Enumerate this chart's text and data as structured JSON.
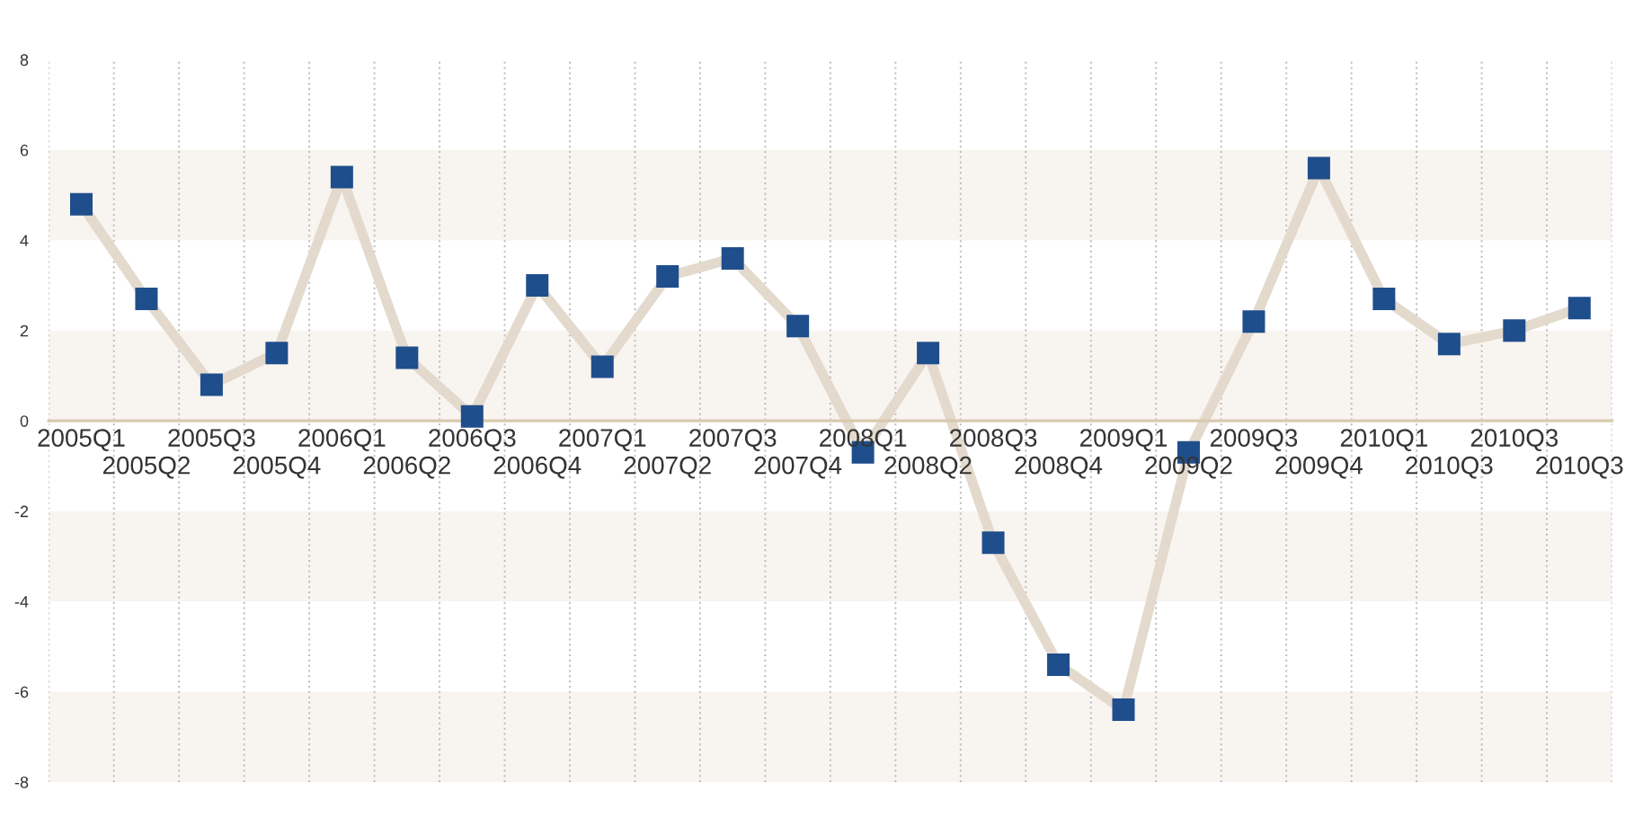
{
  "chart_data": {
    "type": "line",
    "categories": [
      "2005Q1",
      "2005Q2",
      "2005Q3",
      "2005Q4",
      "2006Q1",
      "2006Q2",
      "2006Q3",
      "2006Q4",
      "2007Q1",
      "2007Q2",
      "2007Q3",
      "2007Q4",
      "2008Q1",
      "2008Q2",
      "2008Q3",
      "2008Q4",
      "2009Q1",
      "2009Q2",
      "2009Q3",
      "2009Q4",
      "2010Q1",
      "2010Q3",
      "2010Q3",
      "2010Q3"
    ],
    "series": [
      {
        "color": "#1f4e8c",
        "values": [
          4.8,
          2.7,
          0.8,
          1.5,
          5.4,
          1.4,
          0.1,
          3.0,
          1.2,
          3.2,
          3.6,
          2.1,
          -0.7,
          1.5,
          -2.7,
          -5.4,
          -6.4,
          -0.7,
          2.2,
          5.6,
          2.7,
          1.7,
          2.0,
          2.5
        ]
      }
    ],
    "ylim": [
      -8,
      8
    ],
    "yticks": [
      -8,
      -6,
      -4,
      -2,
      0,
      2,
      4,
      6,
      8
    ],
    "bands": [
      {
        "axis": "y",
        "from": 4,
        "to": 6,
        "color": "#f8f4ef"
      },
      {
        "axis": "y",
        "from": 0,
        "to": 2,
        "color": "#f8f4ef"
      },
      {
        "axis": "y",
        "from": -4,
        "to": -2,
        "color": "#f8f4ef"
      },
      {
        "axis": "y",
        "from": -8,
        "to": -6,
        "color": "#f8f4ef"
      }
    ],
    "grid": "x",
    "marker": "square",
    "line_style": "solid",
    "legend": false
  }
}
